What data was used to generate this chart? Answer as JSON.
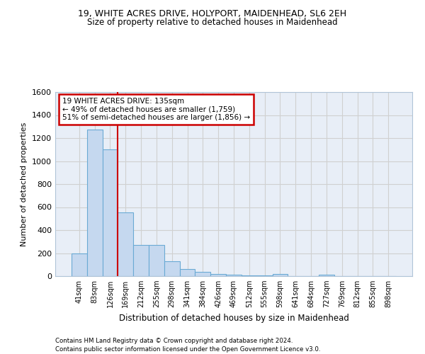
{
  "title1": "19, WHITE ACRES DRIVE, HOLYPORT, MAIDENHEAD, SL6 2EH",
  "title2": "Size of property relative to detached houses in Maidenhead",
  "xlabel": "Distribution of detached houses by size in Maidenhead",
  "ylabel": "Number of detached properties",
  "categories": [
    "41sqm",
    "83sqm",
    "126sqm",
    "169sqm",
    "212sqm",
    "255sqm",
    "298sqm",
    "341sqm",
    "384sqm",
    "426sqm",
    "469sqm",
    "512sqm",
    "555sqm",
    "598sqm",
    "641sqm",
    "684sqm",
    "727sqm",
    "769sqm",
    "812sqm",
    "855sqm",
    "898sqm"
  ],
  "values": [
    200,
    1275,
    1100,
    555,
    270,
    270,
    130,
    60,
    35,
    20,
    10,
    8,
    5,
    20,
    2,
    2,
    15,
    2,
    1,
    1,
    1
  ],
  "bar_color": "#c5d8ef",
  "bar_edge_color": "#6aaad4",
  "red_line_x": 2.49,
  "annotation_title": "19 WHITE ACRES DRIVE: 135sqm",
  "annotation_line1": "← 49% of detached houses are smaller (1,759)",
  "annotation_line2": "51% of semi-detached houses are larger (1,856) →",
  "annotation_box_color": "#ffffff",
  "annotation_border_color": "#cc0000",
  "footer1": "Contains HM Land Registry data © Crown copyright and database right 2024.",
  "footer2": "Contains public sector information licensed under the Open Government Licence v3.0.",
  "ylim": [
    0,
    1600
  ],
  "yticks": [
    0,
    200,
    400,
    600,
    800,
    1000,
    1200,
    1400,
    1600
  ],
  "background_color": "#ffffff",
  "grid_color": "#d0d0d0",
  "plot_bg_color": "#e8eef7"
}
